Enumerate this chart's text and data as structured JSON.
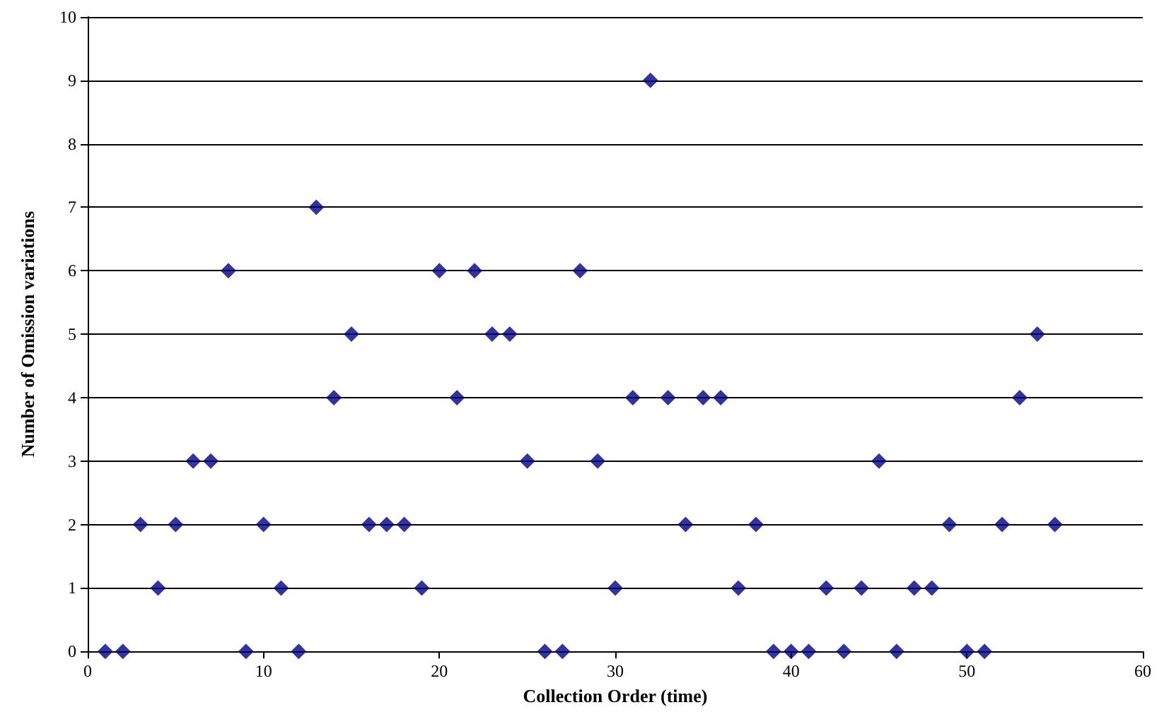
{
  "chart_data": {
    "type": "scatter",
    "xlabel": "Collection Order (time)",
    "ylabel": "Number of Omission variations",
    "x": [
      1,
      2,
      3,
      4,
      5,
      6,
      7,
      8,
      9,
      10,
      11,
      12,
      13,
      14,
      15,
      16,
      17,
      18,
      19,
      20,
      21,
      22,
      23,
      24,
      25,
      26,
      27,
      28,
      29,
      30,
      31,
      32,
      33,
      34,
      35,
      36,
      37,
      38,
      39,
      40,
      41,
      42,
      43,
      44,
      45,
      46,
      47,
      48,
      49,
      50,
      51,
      52,
      53,
      54,
      55
    ],
    "series": [
      {
        "color": "#000080",
        "values": [
          0,
          0,
          2,
          1,
          2,
          3,
          3,
          6,
          0,
          2,
          1,
          0,
          7,
          4,
          5,
          2,
          2,
          2,
          1,
          6,
          4,
          6,
          5,
          5,
          3,
          0,
          0,
          6,
          3,
          1,
          4,
          9,
          4,
          2,
          4,
          4,
          1,
          2,
          0,
          0,
          0,
          1,
          0,
          1,
          3,
          0,
          1,
          1,
          2,
          0,
          0,
          2,
          4,
          5,
          2
        ]
      }
    ],
    "xlim": [
      0,
      60
    ],
    "xticks": [
      0,
      10,
      20,
      30,
      40,
      50,
      60
    ],
    "ylim": [
      0,
      10
    ],
    "yticks": [
      0,
      1,
      2,
      3,
      4,
      5,
      6,
      7,
      8,
      9,
      10
    ],
    "grid": "y",
    "marker": "diamond"
  }
}
